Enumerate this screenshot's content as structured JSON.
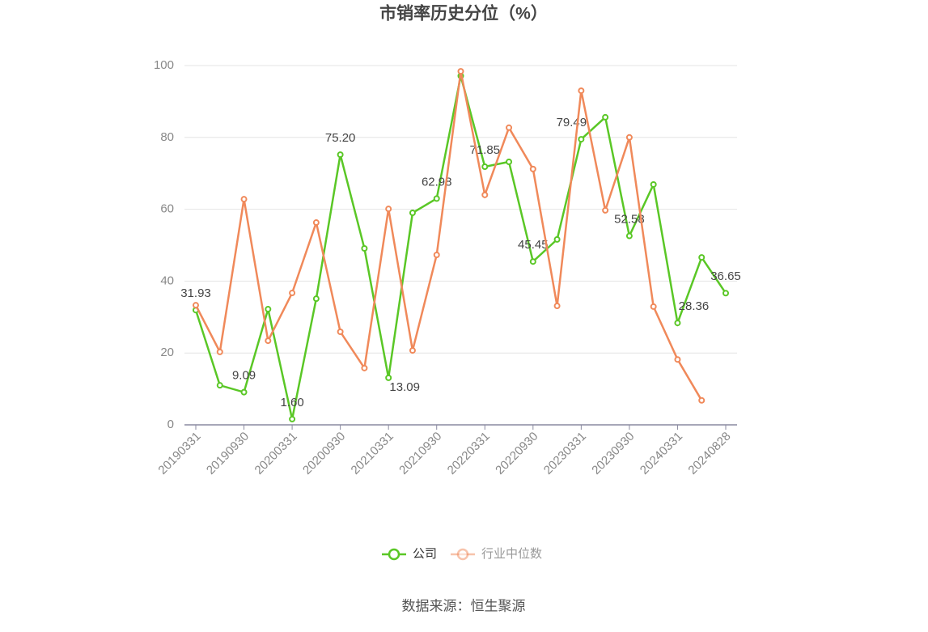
{
  "chart_data": {
    "type": "line",
    "title": "市销率历史分位（%）",
    "source": "数据来源：恒生聚源",
    "categories": [
      "20190331",
      null,
      "20190930",
      null,
      "20200331",
      null,
      "20200930",
      null,
      "20210331",
      null,
      "20210930",
      null,
      "20220331",
      null,
      "20220930",
      null,
      "20230331",
      null,
      "20230930",
      null,
      "20240331",
      null,
      "20240828"
    ],
    "series": [
      {
        "name": "公司",
        "color": "#5ac726",
        "values": [
          31.93,
          11.0,
          9.09,
          32.2,
          1.6,
          35.1,
          75.2,
          49.1,
          13.09,
          59.0,
          62.98,
          97.1,
          71.85,
          73.2,
          45.45,
          51.6,
          79.49,
          85.6,
          52.58,
          66.9,
          28.36,
          46.6,
          36.65
        ],
        "value_labels": [
          "31.93",
          null,
          "9.09",
          null,
          "1.60",
          null,
          "75.20",
          null,
          "13.09",
          null,
          "62.98",
          null,
          "71.85",
          null,
          "45.45",
          null,
          "79.49",
          null,
          "52.58",
          null,
          "28.36",
          null,
          "36.65"
        ]
      },
      {
        "name": "行业中位数",
        "color": "#f0895a",
        "values": [
          33.3,
          20.3,
          62.8,
          23.4,
          36.7,
          56.3,
          25.9,
          15.8,
          60.1,
          20.7,
          47.3,
          98.4,
          64.0,
          82.7,
          71.2,
          33.1,
          93.0,
          59.7,
          80.0,
          32.9,
          18.2,
          6.8,
          null
        ]
      }
    ],
    "ylim": [
      0,
      100
    ],
    "yticks": [
      0,
      20,
      40,
      60,
      80,
      100
    ],
    "grid": true
  }
}
